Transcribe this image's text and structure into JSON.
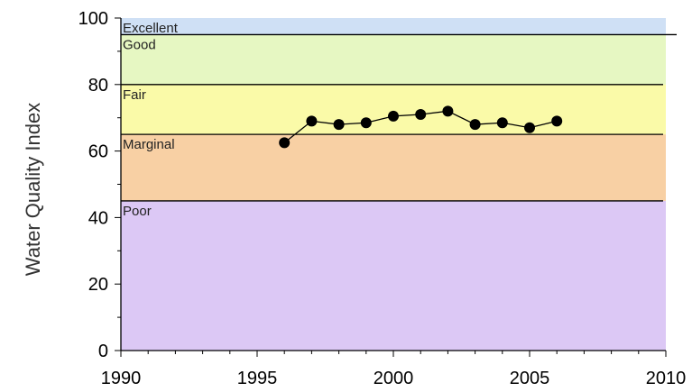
{
  "chart_data": {
    "type": "line",
    "title": "",
    "xlabel": "",
    "ylabel": "Water Quality Index",
    "xlim": [
      1990,
      2010
    ],
    "ylim": [
      0,
      100
    ],
    "x_ticks": [
      "1990",
      "1995",
      "2000",
      "2005",
      "2010"
    ],
    "y_ticks": [
      "0",
      "20",
      "40",
      "60",
      "80",
      "100"
    ],
    "grid": false,
    "bands": [
      {
        "label": "Excellent",
        "from": 95,
        "to": 100,
        "color": "#cfe0f5"
      },
      {
        "label": "Good",
        "from": 80,
        "to": 95,
        "color": "#e6f7c2"
      },
      {
        "label": "Fair",
        "from": 65,
        "to": 80,
        "color": "#fafaa8"
      },
      {
        "label": "Marginal",
        "from": 45,
        "to": 65,
        "color": "#f8d0a4"
      },
      {
        "label": "Poor",
        "from": 0,
        "to": 45,
        "color": "#dcc8f5"
      }
    ],
    "thresholds": [
      95,
      80,
      65,
      45
    ],
    "series": [
      {
        "x": [
          1996,
          1997,
          1998,
          1999,
          2000,
          2001,
          2002,
          2003,
          2004,
          2005,
          2006
        ],
        "y": [
          62.5,
          69,
          68,
          68.5,
          70.5,
          71,
          72,
          68,
          68.5,
          67,
          69
        ],
        "color": "#000000",
        "marker": "circle"
      }
    ]
  }
}
